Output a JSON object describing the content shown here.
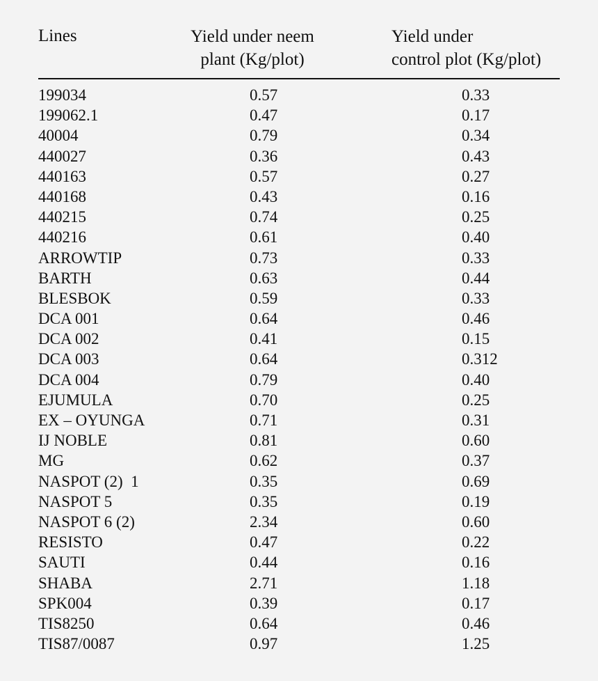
{
  "table": {
    "headers": {
      "lines": "Lines",
      "neem_line1": "Yield under neem",
      "neem_line2": "plant (Kg/plot)",
      "control_line1": "Yield under",
      "control_line2": "control plot (Kg/plot)"
    },
    "rows": [
      {
        "line": "199034",
        "neem": "0.57",
        "control": "0.33"
      },
      {
        "line": "199062.1",
        "neem": "0.47",
        "control": "0.17"
      },
      {
        "line": "40004",
        "neem": "0.79",
        "control": "0.34"
      },
      {
        "line": "440027",
        "neem": "0.36",
        "control": "0.43"
      },
      {
        "line": "440163",
        "neem": "0.57",
        "control": "0.27"
      },
      {
        "line": "440168",
        "neem": "0.43",
        "control": "0.16"
      },
      {
        "line": "440215",
        "neem": "0.74",
        "control": "0.25"
      },
      {
        "line": "440216",
        "neem": "0.61",
        "control": "0.40"
      },
      {
        "line": "ARROWTIP",
        "neem": "0.73",
        "control": "0.33"
      },
      {
        "line": "BARTH",
        "neem": "0.63",
        "control": "0.44"
      },
      {
        "line": "BLESBOK",
        "neem": "0.59",
        "control": "0.33"
      },
      {
        "line": "DCA 001",
        "neem": "0.64",
        "control": "0.46"
      },
      {
        "line": "DCA 002",
        "neem": "0.41",
        "control": "0.15"
      },
      {
        "line": "DCA 003",
        "neem": "0.64",
        "control": "0.312"
      },
      {
        "line": "DCA 004",
        "neem": "0.79",
        "control": "0.40"
      },
      {
        "line": "EJUMULA",
        "neem": "0.70",
        "control": "0.25"
      },
      {
        "line": "EX – OYUNGA",
        "neem": "0.71",
        "control": "0.31"
      },
      {
        "line": "IJ NOBLE",
        "neem": "0.81",
        "control": "0.60"
      },
      {
        "line": "MG",
        "neem": "0.62",
        "control": "0.37"
      },
      {
        "line": "NASPOT (2)  1",
        "neem": "0.35",
        "control": "0.69"
      },
      {
        "line": "NASPOT 5",
        "neem": "0.35",
        "control": "0.19"
      },
      {
        "line": "NASPOT 6 (2)",
        "neem": "2.34",
        "control": "0.60"
      },
      {
        "line": "RESISTO",
        "neem": "0.47",
        "control": "0.22"
      },
      {
        "line": "SAUTI",
        "neem": "0.44",
        "control": "0.16"
      },
      {
        "line": "SHABA",
        "neem": "2.71",
        "control": "1.18"
      },
      {
        "line": "SPK004",
        "neem": "0.39",
        "control": "0.17"
      },
      {
        "line": "TIS8250",
        "neem": "0.64",
        "control": "0.46"
      },
      {
        "line": "TIS87/0087",
        "neem": "0.97",
        "control": "1.25"
      }
    ]
  }
}
